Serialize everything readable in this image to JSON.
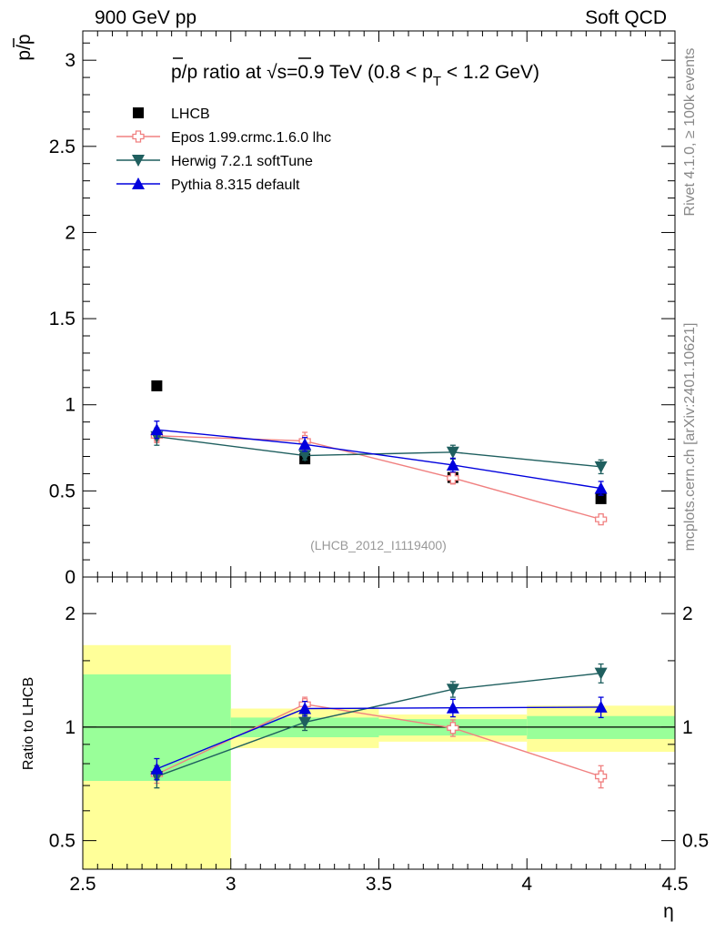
{
  "header": {
    "left": "900 GeV pp",
    "right": "Soft QCD"
  },
  "side": {
    "rivet": "Rivet 4.1.0, ≥ 100k events",
    "mcplots": "mcplots.cern.ch [arXiv:2401.10621]"
  },
  "colors": {
    "lhcb": "#000000",
    "epos": "#f08080",
    "herwig": "#1f5f5f",
    "pythia": "#0000dd",
    "band_inner": "#99ff99",
    "band_outer": "#ffff99"
  },
  "chart_data": [
    {
      "type": "scatter",
      "panel": "main",
      "title": "p̄/p ratio at √s=0.9 TeV (0.8 < pT < 1.2 GeV)",
      "title_parts": {
        "pre": "p/p ratio at ",
        "sqrt": "√",
        "s": "s",
        "mid": "=0.9 TeV (0.8 < p",
        "sub": "T",
        "post": " < 1.2 GeV)"
      },
      "ylabel": "p/p",
      "xlim": [
        2.5,
        4.5
      ],
      "ylim": [
        0,
        3.17
      ],
      "yticks": [
        0,
        0.5,
        1,
        1.5,
        2,
        2.5,
        3
      ],
      "yticklabels": [
        "0",
        "0.5",
        "1",
        "1.5",
        "2",
        "2.5",
        "3"
      ],
      "x": [
        2.75,
        3.25,
        3.75,
        4.25
      ],
      "watermark": "(LHCB_2012_I1119400)",
      "legend_position": "top-left",
      "series": [
        {
          "name": "LHCB",
          "marker": "square",
          "values": [
            1.11,
            0.686,
            0.578,
            0.455
          ],
          "errors": [
            0.005,
            0.02,
            0.015,
            0.02
          ]
        },
        {
          "name": "Epos 1.99.crmc.1.6.0 lhc",
          "marker": "open-cross",
          "values": [
            0.82,
            0.79,
            0.575,
            0.335
          ],
          "errors": [
            0.04,
            0.05,
            0.035,
            0.02
          ]
        },
        {
          "name": "Herwig 7.2.1 softTune",
          "marker": "triangle-down",
          "values": [
            0.815,
            0.705,
            0.725,
            0.64
          ],
          "errors": [
            0.05,
            0.025,
            0.04,
            0.04
          ]
        },
        {
          "name": "Pythia 8.315 default",
          "marker": "triangle-up",
          "values": [
            0.855,
            0.77,
            0.65,
            0.515
          ],
          "errors": [
            0.05,
            0.04,
            0.04,
            0.04
          ]
        }
      ]
    },
    {
      "type": "scatter",
      "panel": "ratio",
      "ylabel": "Ratio to LHCB",
      "xlabel": "η",
      "xlim": [
        2.5,
        4.5
      ],
      "ylim": [
        0.42,
        2.5
      ],
      "log_y": true,
      "yticks": [
        0.5,
        1,
        2
      ],
      "yticklabels": [
        "0.5",
        "1",
        "2"
      ],
      "xticks": [
        2.5,
        3,
        3.5,
        4,
        4.5
      ],
      "xticklabels": [
        "2.5",
        "3",
        "3.5",
        "4",
        "4.5"
      ],
      "x": [
        2.75,
        3.25,
        3.75,
        4.25
      ],
      "bands": [
        {
          "x0": 2.5,
          "x1": 3.0,
          "inner": [
            0.72,
            1.38
          ],
          "outer": [
            0.42,
            1.65
          ]
        },
        {
          "x0": 3.0,
          "x1": 3.5,
          "inner": [
            0.94,
            1.06
          ],
          "outer": [
            0.88,
            1.12
          ]
        },
        {
          "x0": 3.5,
          "x1": 4.0,
          "inner": [
            0.95,
            1.05
          ],
          "outer": [
            0.915,
            1.08
          ]
        },
        {
          "x0": 4.0,
          "x1": 4.5,
          "inner": [
            0.93,
            1.07
          ],
          "outer": [
            0.86,
            1.14
          ]
        }
      ],
      "series": [
        {
          "name": "Epos 1.99.crmc.1.6.0 lhc",
          "values": [
            0.75,
            1.15,
            0.995,
            0.74
          ],
          "errors": [
            0.04,
            0.05,
            0.05,
            0.05
          ]
        },
        {
          "name": "Herwig 7.2.1 softTune",
          "values": [
            0.74,
            1.03,
            1.26,
            1.39
          ],
          "errors": [
            0.05,
            0.05,
            0.06,
            0.08
          ]
        },
        {
          "name": "Pythia 8.315 default",
          "values": [
            0.775,
            1.12,
            1.125,
            1.13
          ],
          "errors": [
            0.05,
            0.05,
            0.06,
            0.07
          ]
        }
      ]
    }
  ]
}
